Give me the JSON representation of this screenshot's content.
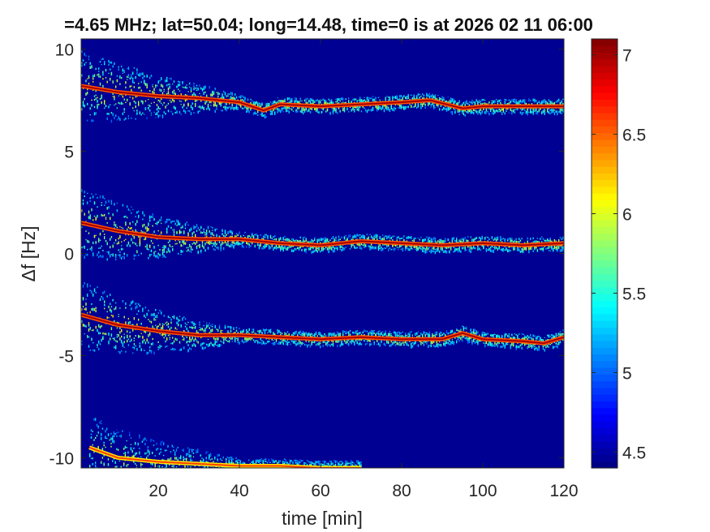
{
  "chart_data": {
    "type": "heatmap",
    "title": "=4.65 MHz;  lat=50.04; long=14.48, time=0 is at 2026 02 11 06:00",
    "xlabel": "time [min]",
    "ylabel": "Δf [Hz]",
    "xlim": [
      1,
      120
    ],
    "ylim": [
      -10.5,
      10.5
    ],
    "xticks": [
      20,
      40,
      60,
      80,
      100,
      120
    ],
    "yticks": [
      10,
      5,
      0,
      -5,
      -10
    ],
    "grid": false,
    "background_level": 4.45,
    "colorbar": {
      "colormap": "jet",
      "range": [
        4.4,
        7.1
      ],
      "ticks": [
        4.5,
        5,
        5.5,
        6,
        6.5,
        7
      ]
    },
    "traces": [
      {
        "time_min": [
          1,
          10,
          20,
          30,
          40,
          46,
          50,
          60,
          70,
          80,
          87,
          95,
          100,
          110,
          120
        ],
        "df_hz": [
          8.2,
          7.9,
          7.7,
          7.6,
          7.4,
          7.0,
          7.3,
          7.2,
          7.3,
          7.4,
          7.5,
          7.1,
          7.2,
          7.2,
          7.2
        ],
        "peak_level": 7.0
      },
      {
        "time_min": [
          1,
          10,
          20,
          30,
          40,
          50,
          60,
          70,
          80,
          90,
          100,
          110,
          120
        ],
        "df_hz": [
          1.5,
          1.1,
          0.8,
          0.7,
          0.7,
          0.5,
          0.4,
          0.6,
          0.5,
          0.4,
          0.5,
          0.4,
          0.5
        ],
        "peak_level": 7.0
      },
      {
        "time_min": [
          1,
          10,
          20,
          30,
          40,
          50,
          60,
          70,
          80,
          90,
          95,
          100,
          110,
          115,
          120
        ],
        "df_hz": [
          -3.0,
          -3.5,
          -3.8,
          -4.0,
          -4.0,
          -4.1,
          -4.2,
          -4.1,
          -4.2,
          -4.2,
          -3.9,
          -4.2,
          -4.3,
          -4.4,
          -4.1
        ],
        "peak_level": 7.0
      },
      {
        "time_min": [
          3,
          10,
          20,
          30,
          40,
          50,
          60,
          70
        ],
        "df_hz": [
          -9.5,
          -10.0,
          -10.2,
          -10.3,
          -10.4,
          -10.4,
          -10.5,
          -10.5
        ],
        "peak_level": 6.6
      }
    ]
  }
}
